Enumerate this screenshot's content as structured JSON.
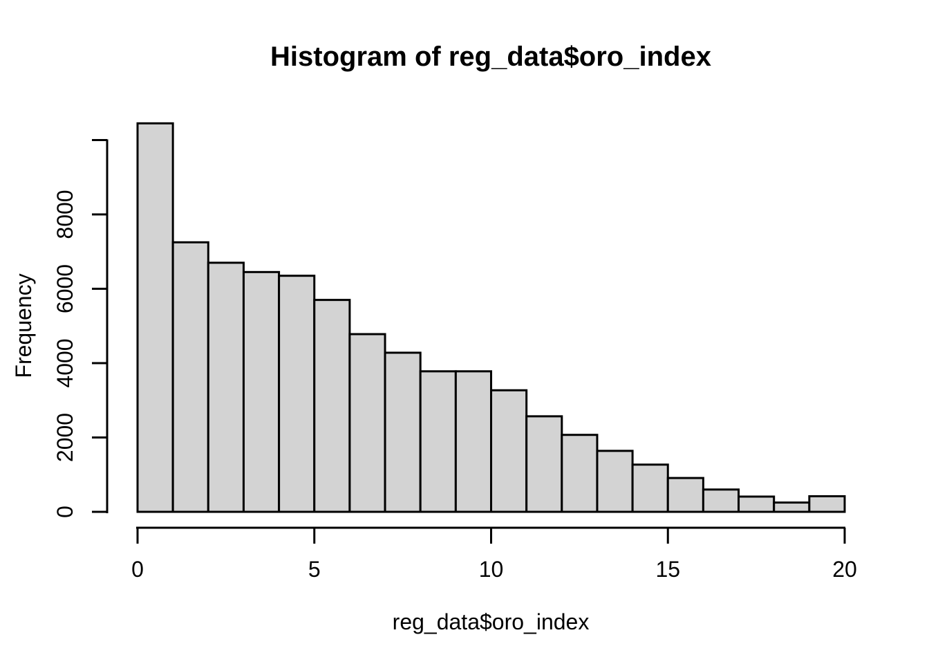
{
  "chart_data": {
    "type": "bar",
    "chart_kind": "histogram",
    "title": "Histogram of reg_data$oro_index",
    "xlabel": "reg_data$oro_index",
    "ylabel": "Frequency",
    "bin_start": 0,
    "bin_width": 1,
    "categories": [
      "0-1",
      "1-2",
      "2-3",
      "3-4",
      "4-5",
      "5-6",
      "6-7",
      "7-8",
      "8-9",
      "9-10",
      "10-11",
      "11-12",
      "12-13",
      "13-14",
      "14-15",
      "15-16",
      "16-17",
      "17-18",
      "18-19",
      "19-20"
    ],
    "values": [
      10450,
      7250,
      6700,
      6450,
      6350,
      5700,
      4780,
      4280,
      3780,
      3780,
      3270,
      2570,
      2070,
      1640,
      1270,
      910,
      600,
      410,
      250,
      420
    ],
    "xlim": [
      0,
      20
    ],
    "ylim": [
      0,
      10000
    ],
    "x_ticks": {
      "values": [
        0,
        5,
        10,
        15,
        20
      ],
      "labels": [
        "0",
        "5",
        "10",
        "15",
        "20"
      ]
    },
    "y_ticks": {
      "values": [
        0,
        2000,
        4000,
        6000,
        8000,
        10000
      ],
      "labels": [
        "0",
        "2000",
        "4000",
        "6000",
        "8000",
        ""
      ]
    },
    "grid": false,
    "legend": false,
    "colors": {
      "bar_fill": "#D3D3D3",
      "bar_stroke": "#000000",
      "axis": "#000000",
      "text": "#000000",
      "background": "#FFFFFF"
    }
  }
}
